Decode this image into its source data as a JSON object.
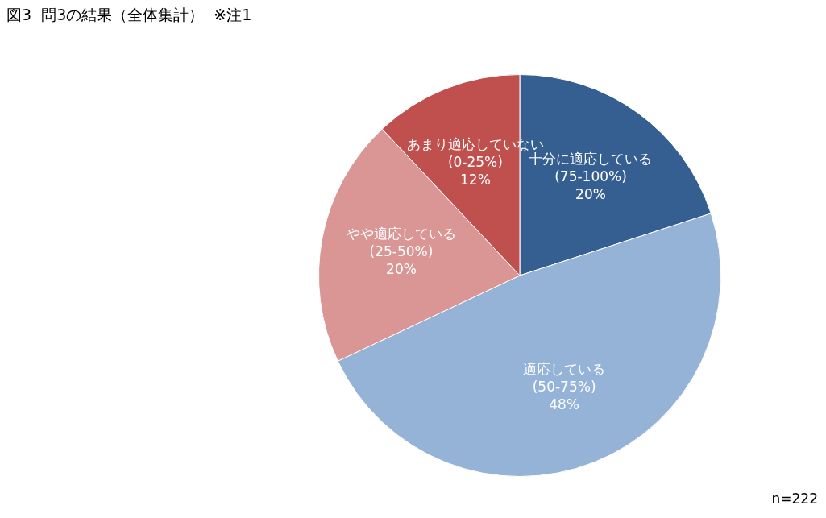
{
  "chart_data": {
    "type": "pie",
    "title": "図3  問3の結果（全体集計）  ※注1",
    "categories": [
      "十分に適応している\n(75-100%)",
      "適応している\n(50-75%)",
      "やや適応している\n(25-50%)",
      "あまり適応していない\n(0-25%)"
    ],
    "values": [
      20,
      48,
      20,
      12
    ],
    "value_labels": [
      "20%",
      "48%",
      "20%",
      "12%"
    ],
    "colors": [
      "#365f91",
      "#95b3d7",
      "#d99694",
      "#c0504d"
    ],
    "annotations": [
      "n=222"
    ]
  }
}
